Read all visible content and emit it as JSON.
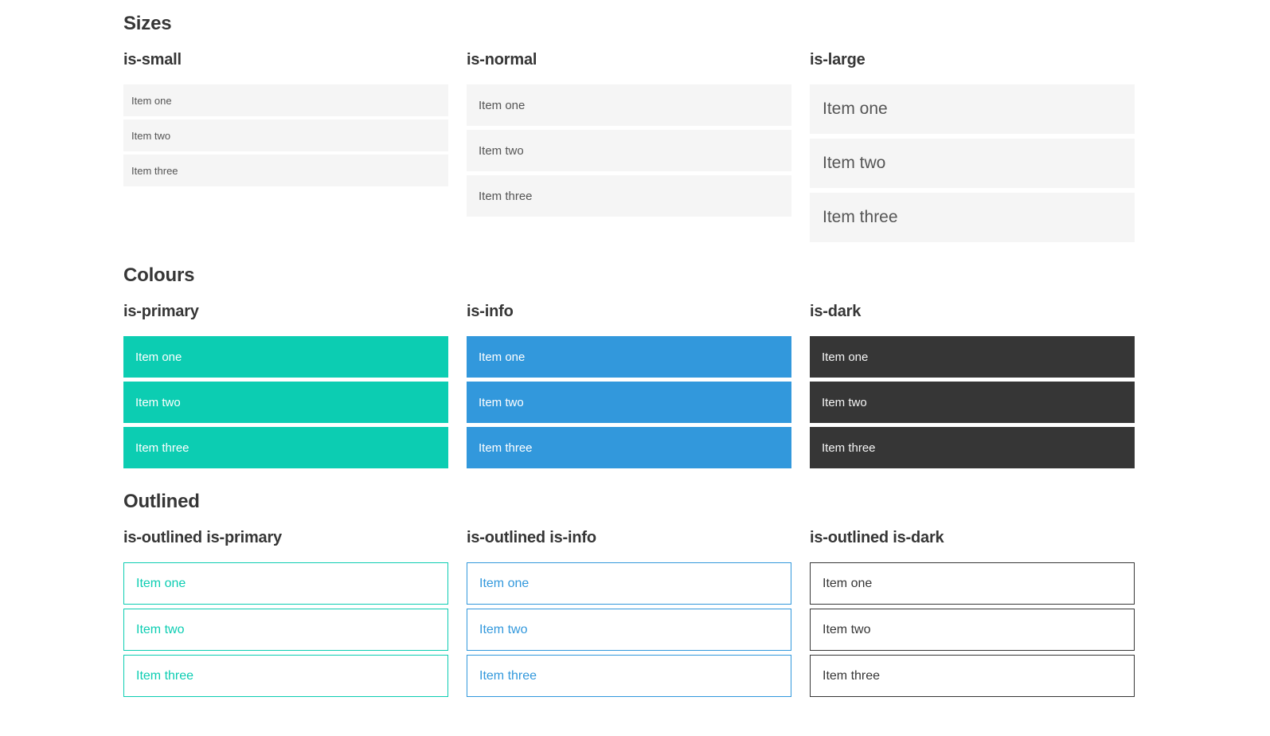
{
  "colors": {
    "primary": "#0ccdb2",
    "info": "#3298dc",
    "dark": "#363636",
    "light_bg": "#f5f5f5",
    "item_text": "#555555",
    "text_on_dark": "#f5f5f5",
    "heading": "#363636"
  },
  "items": [
    "Item one",
    "Item two",
    "Item three"
  ],
  "sections": [
    {
      "title": "Sizes",
      "groups": [
        {
          "label": "is-small"
        },
        {
          "label": "is-normal"
        },
        {
          "label": "is-large"
        }
      ]
    },
    {
      "title": "Colours",
      "groups": [
        {
          "label": "is-primary"
        },
        {
          "label": "is-info"
        },
        {
          "label": "is-dark"
        }
      ]
    },
    {
      "title": "Outlined",
      "groups": [
        {
          "label": "is-outlined is-primary"
        },
        {
          "label": "is-outlined is-info"
        },
        {
          "label": "is-outlined is-dark"
        }
      ]
    }
  ]
}
